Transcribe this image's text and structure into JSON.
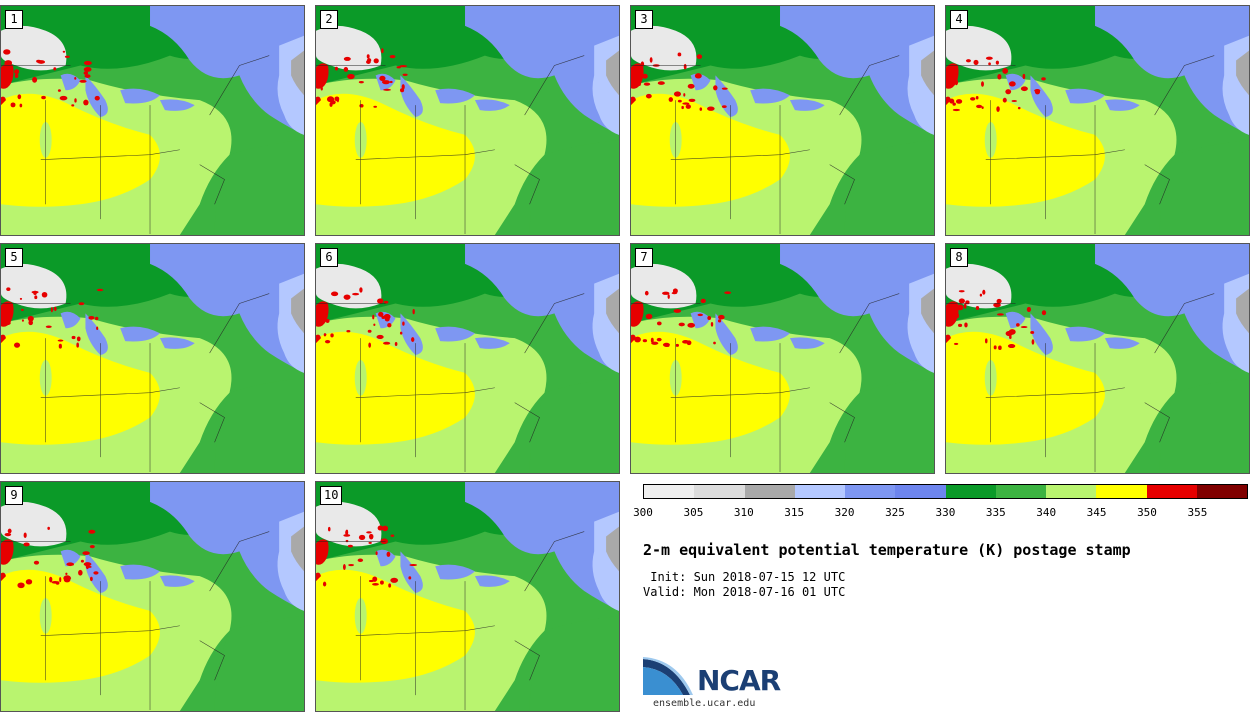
{
  "panels": [
    {
      "label": "1"
    },
    {
      "label": "2"
    },
    {
      "label": "3"
    },
    {
      "label": "4"
    },
    {
      "label": "5"
    },
    {
      "label": "6"
    },
    {
      "label": "7"
    },
    {
      "label": "8"
    },
    {
      "label": "9"
    },
    {
      "label": "10"
    }
  ],
  "colorbar": {
    "colors": [
      "#efefef",
      "#dcdcdc",
      "#a9a9a9",
      "#b4c8ff",
      "#7e97f2",
      "#6d85ee",
      "#0b9a28",
      "#3cb341",
      "#b9f46f",
      "#ffff00",
      "#e60000",
      "#800000"
    ],
    "ticks": [
      "300",
      "305",
      "310",
      "315",
      "320",
      "325",
      "330",
      "335",
      "340",
      "345",
      "350",
      "355"
    ]
  },
  "map_colors": {
    "cold_white": "#e9e9e9",
    "gray": "#a9a9a9",
    "light_blue": "#b4c8ff",
    "blue": "#7e97f2",
    "dark_green": "#0b9a28",
    "green": "#3cb341",
    "light_green": "#b9f46f",
    "yellow": "#ffff00",
    "red": "#e60000"
  },
  "title": "2-m equivalent potential temperature (K) postage stamp",
  "init": " Init: Sun 2018-07-15 12 UTC",
  "valid": "Valid: Mon 2018-07-16 01 UTC",
  "logo": {
    "text": "NCAR",
    "url": "ensemble.ucar.edu"
  }
}
